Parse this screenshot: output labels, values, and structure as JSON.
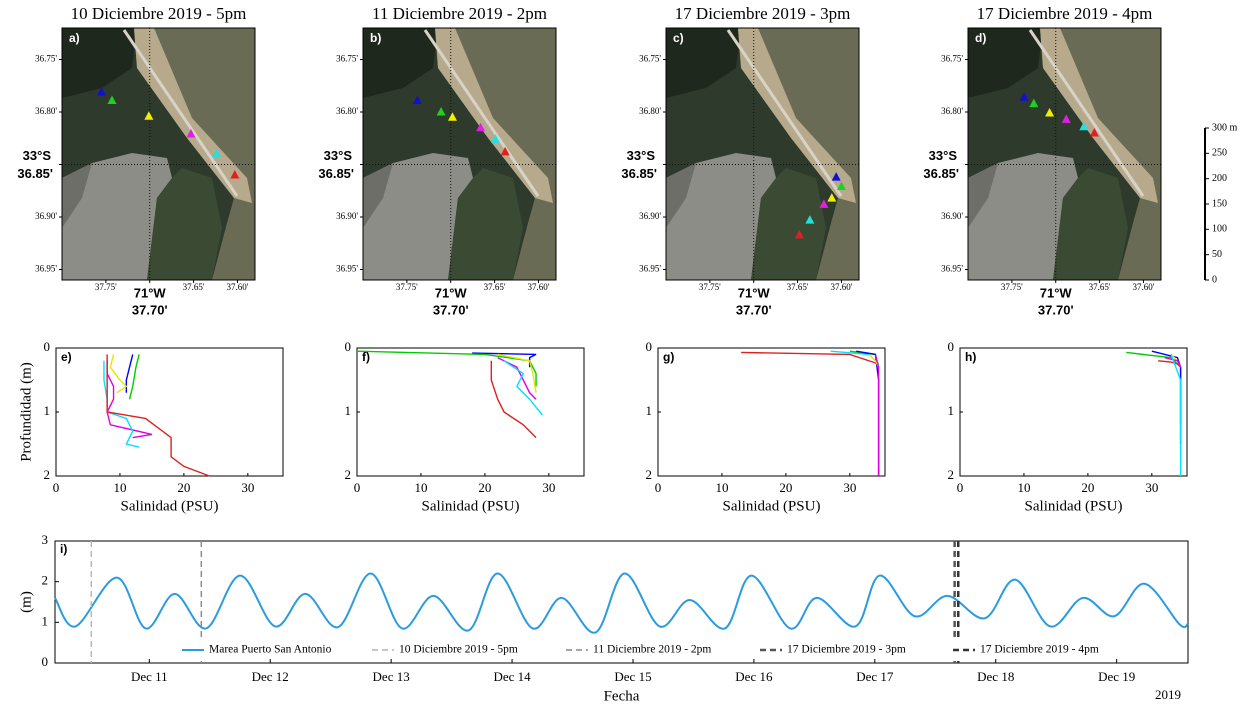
{
  "chart_data": [
    {
      "type": "map",
      "title": "10 Diciembre 2019 - 5pm",
      "panel_label": "a)",
      "xlim": [
        37.8,
        37.58
      ],
      "ylim": [
        36.96,
        36.72
      ],
      "xticks": [
        {
          "value": 37.75,
          "label": "37.75'"
        },
        {
          "value": 37.7,
          "label": "37.70'"
        },
        {
          "value": 37.65,
          "label": "37.65'"
        },
        {
          "value": 37.6,
          "label": "37.60'"
        }
      ],
      "yticks": [
        {
          "value": 36.75,
          "label": "36.75'"
        },
        {
          "value": 36.8,
          "label": "36.80'"
        },
        {
          "value": 36.85,
          "label": "36.85'"
        },
        {
          "value": 36.9,
          "label": "36.90'"
        },
        {
          "value": 36.95,
          "label": "36.95'"
        }
      ],
      "x_degree_label": {
        "value": 37.7,
        "label": "71°W"
      },
      "y_degree_label": {
        "value": 36.85,
        "label": "33°S"
      },
      "series": [
        {
          "color": "#1010d0",
          "x": [
            37.755
          ],
          "values": [
            36.781
          ]
        },
        {
          "color": "#20d020",
          "x": [
            37.743
          ],
          "values": [
            36.789
          ]
        },
        {
          "color": "#f0f000",
          "x": [
            37.701
          ],
          "values": [
            36.804
          ]
        },
        {
          "color": "#e020e0",
          "x": [
            37.653
          ],
          "values": [
            36.821
          ]
        },
        {
          "color": "#20e0e0",
          "x": [
            37.624
          ],
          "values": [
            36.84
          ]
        },
        {
          "color": "#e02020",
          "x": [
            37.603
          ],
          "values": [
            36.86
          ]
        }
      ]
    },
    {
      "type": "map",
      "title": "11 Diciembre 2019 - 2pm",
      "panel_label": "b)",
      "xlim": [
        37.8,
        37.58
      ],
      "ylim": [
        36.96,
        36.72
      ],
      "xticks": [
        {
          "value": 37.75,
          "label": "37.75'"
        },
        {
          "value": 37.7,
          "label": "37.70'"
        },
        {
          "value": 37.65,
          "label": "37.65'"
        },
        {
          "value": 37.6,
          "label": "37.60'"
        }
      ],
      "yticks": [
        {
          "value": 36.75,
          "label": "36.75'"
        },
        {
          "value": 36.8,
          "label": "36.80'"
        },
        {
          "value": 36.85,
          "label": "36.85'"
        },
        {
          "value": 36.9,
          "label": "36.90'"
        },
        {
          "value": 36.95,
          "label": "36.95'"
        }
      ],
      "x_degree_label": {
        "value": 37.7,
        "label": "71°W"
      },
      "y_degree_label": {
        "value": 36.85,
        "label": "33°S"
      },
      "series": [
        {
          "color": "#1010d0",
          "x": [
            37.738
          ],
          "values": [
            36.789
          ]
        },
        {
          "color": "#20d020",
          "x": [
            37.711
          ],
          "values": [
            36.8
          ]
        },
        {
          "color": "#f0f000",
          "x": [
            37.698
          ],
          "values": [
            36.805
          ]
        },
        {
          "color": "#e020e0",
          "x": [
            37.666
          ],
          "values": [
            36.815
          ]
        },
        {
          "color": "#20e0e0",
          "x": [
            37.649
          ],
          "values": [
            36.826
          ]
        },
        {
          "color": "#e02020",
          "x": [
            37.638
          ],
          "values": [
            36.838
          ]
        }
      ]
    },
    {
      "type": "map",
      "title": "17 Diciembre 2019 - 3pm",
      "panel_label": "c)",
      "xlim": [
        37.8,
        37.58
      ],
      "ylim": [
        36.96,
        36.72
      ],
      "xticks": [
        {
          "value": 37.75,
          "label": "37.75'"
        },
        {
          "value": 37.7,
          "label": "37.70'"
        },
        {
          "value": 37.65,
          "label": "37.65'"
        },
        {
          "value": 37.6,
          "label": "37.60'"
        }
      ],
      "yticks": [
        {
          "value": 36.75,
          "label": "36.75'"
        },
        {
          "value": 36.8,
          "label": "36.80'"
        },
        {
          "value": 36.85,
          "label": "36.85'"
        },
        {
          "value": 36.9,
          "label": "36.90'"
        },
        {
          "value": 36.95,
          "label": "36.95'"
        }
      ],
      "x_degree_label": {
        "value": 37.7,
        "label": "71°W"
      },
      "y_degree_label": {
        "value": 36.85,
        "label": "33°S"
      },
      "series": [
        {
          "color": "#1010d0",
          "x": [
            37.606
          ],
          "values": [
            36.862
          ]
        },
        {
          "color": "#20d020",
          "x": [
            37.6
          ],
          "values": [
            36.871
          ]
        },
        {
          "color": "#f0f000",
          "x": [
            37.611
          ],
          "values": [
            36.882
          ]
        },
        {
          "color": "#e020e0",
          "x": [
            37.62
          ],
          "values": [
            36.888
          ]
        },
        {
          "color": "#20e0e0",
          "x": [
            37.636
          ],
          "values": [
            36.903
          ]
        },
        {
          "color": "#e02020",
          "x": [
            37.648
          ],
          "values": [
            36.917
          ]
        }
      ]
    },
    {
      "type": "map",
      "title": "17 Diciembre 2019 - 4pm",
      "panel_label": "d)",
      "xlim": [
        37.8,
        37.58
      ],
      "ylim": [
        36.96,
        36.72
      ],
      "xticks": [
        {
          "value": 37.75,
          "label": "37.75'"
        },
        {
          "value": 37.7,
          "label": "37.70'"
        },
        {
          "value": 37.65,
          "label": "37.65'"
        },
        {
          "value": 37.6,
          "label": "37.60'"
        }
      ],
      "yticks": [
        {
          "value": 36.75,
          "label": "36.75'"
        },
        {
          "value": 36.8,
          "label": "36.80'"
        },
        {
          "value": 36.85,
          "label": "36.85'"
        },
        {
          "value": 36.9,
          "label": "36.90'"
        },
        {
          "value": 36.95,
          "label": "36.95'"
        }
      ],
      "x_degree_label": {
        "value": 37.7,
        "label": "71°W"
      },
      "y_degree_label": {
        "value": 36.85,
        "label": "33°S"
      },
      "series": [
        {
          "color": "#1010d0",
          "x": [
            37.736
          ],
          "values": [
            36.786
          ]
        },
        {
          "color": "#20d020",
          "x": [
            37.725
          ],
          "values": [
            36.792
          ]
        },
        {
          "color": "#f0f000",
          "x": [
            37.707
          ],
          "values": [
            36.801
          ]
        },
        {
          "color": "#e020e0",
          "x": [
            37.688
          ],
          "values": [
            36.807
          ]
        },
        {
          "color": "#20e0e0",
          "x": [
            37.668
          ],
          "values": [
            36.814
          ]
        },
        {
          "color": "#e02020",
          "x": [
            37.656
          ],
          "values": [
            36.82
          ]
        }
      ],
      "scale_bar": {
        "ylim": [
          0,
          300
        ],
        "ticks": [
          0,
          50,
          100,
          150,
          200,
          250,
          {
            "value": 300,
            "label": "300 m"
          }
        ]
      }
    },
    {
      "type": "profile",
      "panel_label": "e)",
      "xlabel": "Salinidad (PSU)",
      "ylabel": "Profundidad (m)",
      "xlim": [
        0,
        35.5
      ],
      "ylim": [
        2,
        0
      ],
      "xticks": [
        0,
        10,
        20,
        30
      ],
      "yticks": [
        0,
        1,
        2
      ],
      "series": [
        {
          "color": "#0000ff",
          "x": [
            12,
            11.5,
            11,
            11
          ],
          "values": [
            0.1,
            0.3,
            0.5,
            0.7
          ]
        },
        {
          "color": "#00cc00",
          "x": [
            13,
            12.5,
            12,
            11.5
          ],
          "values": [
            0.1,
            0.3,
            0.6,
            0.8
          ]
        },
        {
          "color": "#e6e600",
          "x": [
            9,
            8.5,
            10,
            11,
            9.5
          ],
          "values": [
            0.1,
            0.3,
            0.5,
            0.6,
            0.7
          ]
        },
        {
          "color": "#e000e0",
          "x": [
            8,
            8,
            9,
            9,
            8,
            8.5,
            15,
            12
          ],
          "values": [
            0.2,
            0.4,
            0.6,
            0.8,
            1.0,
            1.2,
            1.35,
            1.4
          ]
        },
        {
          "color": "#00e0ff",
          "x": [
            7.5,
            7.5,
            8,
            8,
            11,
            12,
            11,
            13
          ],
          "values": [
            0.2,
            0.5,
            0.8,
            1.0,
            1.1,
            1.3,
            1.5,
            1.55
          ]
        },
        {
          "color": "#e02020",
          "x": [
            8,
            8,
            8,
            14,
            18,
            18,
            20,
            24
          ],
          "values": [
            0.1,
            0.5,
            1.0,
            1.1,
            1.4,
            1.7,
            1.85,
            2.0
          ]
        }
      ]
    },
    {
      "type": "profile",
      "panel_label": "f)",
      "xlabel": "Salinidad (PSU)",
      "xlim": [
        0,
        35.5
      ],
      "ylim": [
        2,
        0
      ],
      "xticks": [
        0,
        10,
        20,
        30
      ],
      "yticks": [
        0,
        1,
        2
      ],
      "series": [
        {
          "color": "#0000ff",
          "x": [
            18,
            28,
            27,
            27
          ],
          "values": [
            0.08,
            0.1,
            0.15,
            0.3
          ]
        },
        {
          "color": "#00cc00",
          "x": [
            0,
            20,
            27,
            28,
            28
          ],
          "values": [
            0.05,
            0.1,
            0.2,
            0.4,
            0.6
          ]
        },
        {
          "color": "#e6e600",
          "x": [
            22,
            27,
            27.5,
            28
          ],
          "values": [
            0.1,
            0.2,
            0.4,
            0.7
          ]
        },
        {
          "color": "#e000e0",
          "x": [
            22,
            25,
            26,
            27,
            28
          ],
          "values": [
            0.15,
            0.3,
            0.5,
            0.7,
            0.8
          ]
        },
        {
          "color": "#00e0ff",
          "x": [
            23,
            26,
            25,
            27,
            29
          ],
          "values": [
            0.2,
            0.4,
            0.6,
            0.8,
            1.05
          ]
        },
        {
          "color": "#e02020",
          "x": [
            21,
            21,
            22,
            23,
            26,
            28
          ],
          "values": [
            0.2,
            0.5,
            0.8,
            1.0,
            1.2,
            1.4
          ]
        }
      ]
    },
    {
      "type": "profile",
      "panel_label": "g)",
      "xlabel": "Salinidad (PSU)",
      "xlim": [
        0,
        35.5
      ],
      "ylim": [
        2,
        0
      ],
      "xticks": [
        0,
        10,
        20,
        30
      ],
      "yticks": [
        0,
        1,
        2
      ],
      "series": [
        {
          "color": "#e02020",
          "x": [
            13,
            30,
            34.5
          ],
          "values": [
            0.07,
            0.1,
            0.25
          ]
        },
        {
          "color": "#00e0ff",
          "x": [
            27,
            33,
            34
          ],
          "values": [
            0.05,
            0.1,
            0.2
          ]
        },
        {
          "color": "#00cc00",
          "x": [
            30,
            34,
            34.5
          ],
          "values": [
            0.05,
            0.1,
            0.3
          ]
        },
        {
          "color": "#0000ff",
          "x": [
            31,
            34,
            34.5,
            34.5
          ],
          "values": [
            0.05,
            0.1,
            0.5,
            2.0
          ]
        },
        {
          "color": "#e6e600",
          "x": [
            33,
            34,
            34.5
          ],
          "values": [
            0.1,
            0.2,
            0.3
          ]
        },
        {
          "color": "#e000e0",
          "x": [
            34,
            34.5,
            34.5
          ],
          "values": [
            0.1,
            0.3,
            2.0
          ]
        }
      ]
    },
    {
      "type": "profile",
      "panel_label": "h)",
      "xlabel": "Salinidad (PSU)",
      "xlim": [
        0,
        35.5
      ],
      "ylim": [
        2,
        0
      ],
      "xticks": [
        0,
        10,
        20,
        30
      ],
      "yticks": [
        0,
        1,
        2
      ],
      "series": [
        {
          "color": "#00cc00",
          "x": [
            26,
            33,
            34.5,
            34.5
          ],
          "values": [
            0.07,
            0.15,
            0.3,
            1.2
          ]
        },
        {
          "color": "#0000ff",
          "x": [
            30,
            34,
            34.5,
            34.5
          ],
          "values": [
            0.05,
            0.15,
            0.3,
            1.5
          ]
        },
        {
          "color": "#e02020",
          "x": [
            31,
            33,
            34,
            34.5
          ],
          "values": [
            0.2,
            0.22,
            0.25,
            0.3
          ]
        },
        {
          "color": "#e6e600",
          "x": [
            33,
            34,
            34.5
          ],
          "values": [
            0.1,
            0.2,
            0.3
          ]
        },
        {
          "color": "#e000e0",
          "x": [
            32,
            34,
            34.5
          ],
          "values": [
            0.15,
            0.2,
            0.3
          ]
        },
        {
          "color": "#00e0ff",
          "x": [
            33,
            34.5,
            34.5
          ],
          "values": [
            0.1,
            0.5,
            2.0
          ]
        }
      ]
    },
    {
      "type": "tide",
      "panel_label": "i)",
      "xlabel": "Fecha",
      "ylabel": "(m)",
      "year_label": "2019",
      "xlim": [
        10.22,
        19.59
      ],
      "ylim": [
        0,
        3
      ],
      "yticks": [
        0,
        1,
        2,
        3
      ],
      "xticks": [
        {
          "value": 11,
          "label": "Dec 11"
        },
        {
          "value": 12,
          "label": "Dec 12"
        },
        {
          "value": 13,
          "label": "Dec 13"
        },
        {
          "value": 14,
          "label": "Dec 14"
        },
        {
          "value": 15,
          "label": "Dec 15"
        },
        {
          "value": 16,
          "label": "Dec 16"
        },
        {
          "value": 17,
          "label": "Dec 17"
        },
        {
          "value": 18,
          "label": "Dec 18"
        },
        {
          "value": 19,
          "label": "Dec 19"
        }
      ],
      "series": [
        {
          "name": "Marea Puerto San Antonio",
          "color": "#2b9be0",
          "x": [
            10.22,
            10.39,
            10.73,
            10.97,
            11.21,
            11.47,
            11.75,
            12.04,
            12.29,
            12.56,
            12.83,
            13.09,
            13.35,
            13.64,
            13.88,
            14.17,
            14.41,
            14.69,
            14.93,
            15.22,
            15.47,
            15.76,
            15.98,
            16.3,
            16.52,
            16.84,
            17.04,
            17.33,
            17.6,
            17.91,
            18.16,
            18.45,
            18.72,
            18.98,
            19.23,
            19.52,
            19.59
          ],
          "values": [
            1.6,
            0.9,
            2.1,
            0.85,
            1.7,
            0.85,
            2.15,
            0.9,
            1.7,
            0.88,
            2.2,
            0.85,
            1.65,
            0.8,
            2.2,
            0.85,
            1.6,
            0.75,
            2.2,
            0.9,
            1.55,
            0.85,
            2.15,
            0.85,
            1.6,
            0.9,
            2.15,
            1.15,
            1.65,
            1.1,
            2.05,
            0.9,
            1.6,
            1.15,
            1.95,
            0.95,
            0.97
          ]
        }
      ],
      "vlines": [
        {
          "name": "10 Diciembre 2019 - 5pm",
          "color": "#b4b4b4",
          "x": 10.52
        },
        {
          "name": "11 Diciembre 2019 - 2pm",
          "color": "#888888",
          "x": 11.43
        },
        {
          "name": "17 Diciembre 2019 - 3pm",
          "color": "#555555",
          "x": 17.66
        },
        {
          "name": "17 Diciembre 2019 - 4pm",
          "color": "#333333",
          "x": 17.69
        }
      ]
    }
  ]
}
